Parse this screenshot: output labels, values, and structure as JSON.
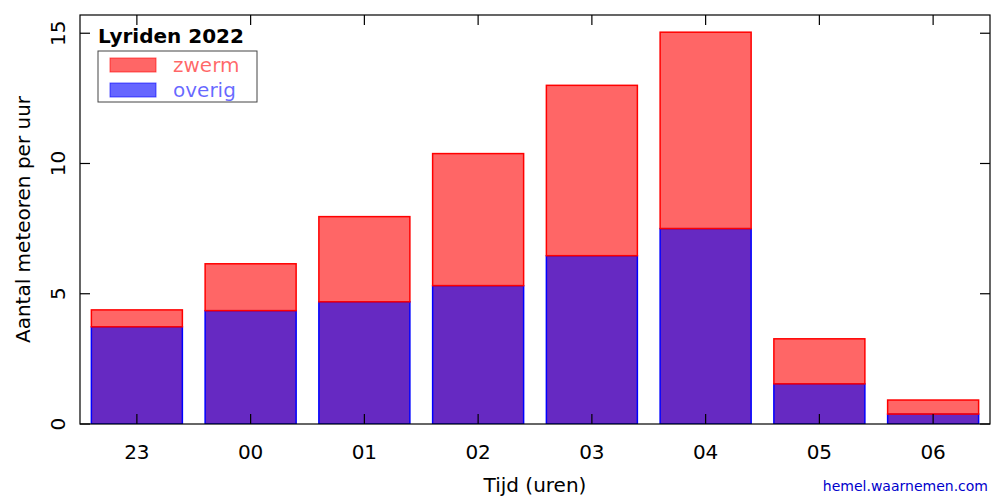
{
  "chart_data": {
    "type": "bar",
    "title": "Lyriden 2022",
    "x_label": "Tijd (uren)",
    "y_label": "Aantal meteoren per uur",
    "source": "hemel.waarnemen.com",
    "categories": [
      "23",
      "00",
      "01",
      "02",
      "03",
      "04",
      "05",
      "06"
    ],
    "series": [
      {
        "name": "overig",
        "color": "#0000ff",
        "values": [
          3.73,
          4.35,
          4.69,
          5.31,
          6.46,
          7.5,
          1.54,
          0.38
        ]
      },
      {
        "name": "zwerm",
        "color": "#ff0000",
        "values": [
          0.65,
          1.8,
          3.27,
          5.07,
          6.54,
          7.54,
          1.73,
          0.54
        ]
      }
    ],
    "stacked": true,
    "legend": "upper left",
    "grid": false,
    "ylim": [
      0,
      15.7
    ],
    "yticks": [
      0,
      5,
      10,
      15
    ]
  }
}
